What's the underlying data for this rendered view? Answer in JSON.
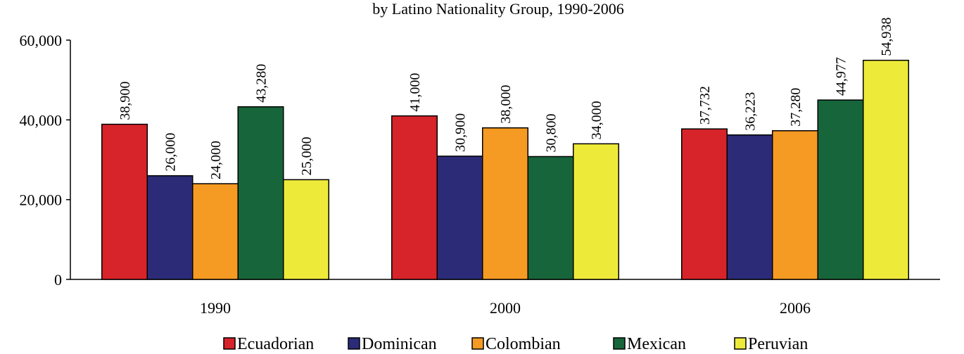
{
  "chart_data": {
    "type": "bar",
    "title": "by Latino Nationality Group, 1990-2006",
    "categories": [
      "1990",
      "2000",
      "2006"
    ],
    "series": [
      {
        "name": "Ecuadorian",
        "color": "#d7232a",
        "values": [
          38900,
          41000,
          37732
        ],
        "labels": [
          "38,900",
          "41,000",
          "37,732"
        ]
      },
      {
        "name": "Dominican",
        "color": "#2b2b78",
        "values": [
          26000,
          30900,
          36223
        ],
        "labels": [
          "26,000",
          "30,900",
          "36,223"
        ]
      },
      {
        "name": "Colombian",
        "color": "#f59a23",
        "values": [
          24000,
          38000,
          37280
        ],
        "labels": [
          "24,000",
          "38,000",
          "37,280"
        ]
      },
      {
        "name": "Mexican",
        "color": "#17653a",
        "values": [
          43280,
          30800,
          44977
        ],
        "labels": [
          "43,280",
          "30,800",
          "44,977"
        ]
      },
      {
        "name": "Peruvian",
        "color": "#eeea3a",
        "values": [
          25000,
          34000,
          54938
        ],
        "labels": [
          "25,000",
          "34,000",
          "54,938"
        ]
      }
    ],
    "yticks": [
      {
        "value": 0,
        "label": "0"
      },
      {
        "value": 20000,
        "label": "20,000"
      },
      {
        "value": 40000,
        "label": "40,000"
      },
      {
        "value": 60000,
        "label": "60,000"
      }
    ],
    "ylim": [
      0,
      60000
    ],
    "xlabel": "",
    "ylabel": "",
    "grid": false,
    "legend_position": "bottom"
  }
}
